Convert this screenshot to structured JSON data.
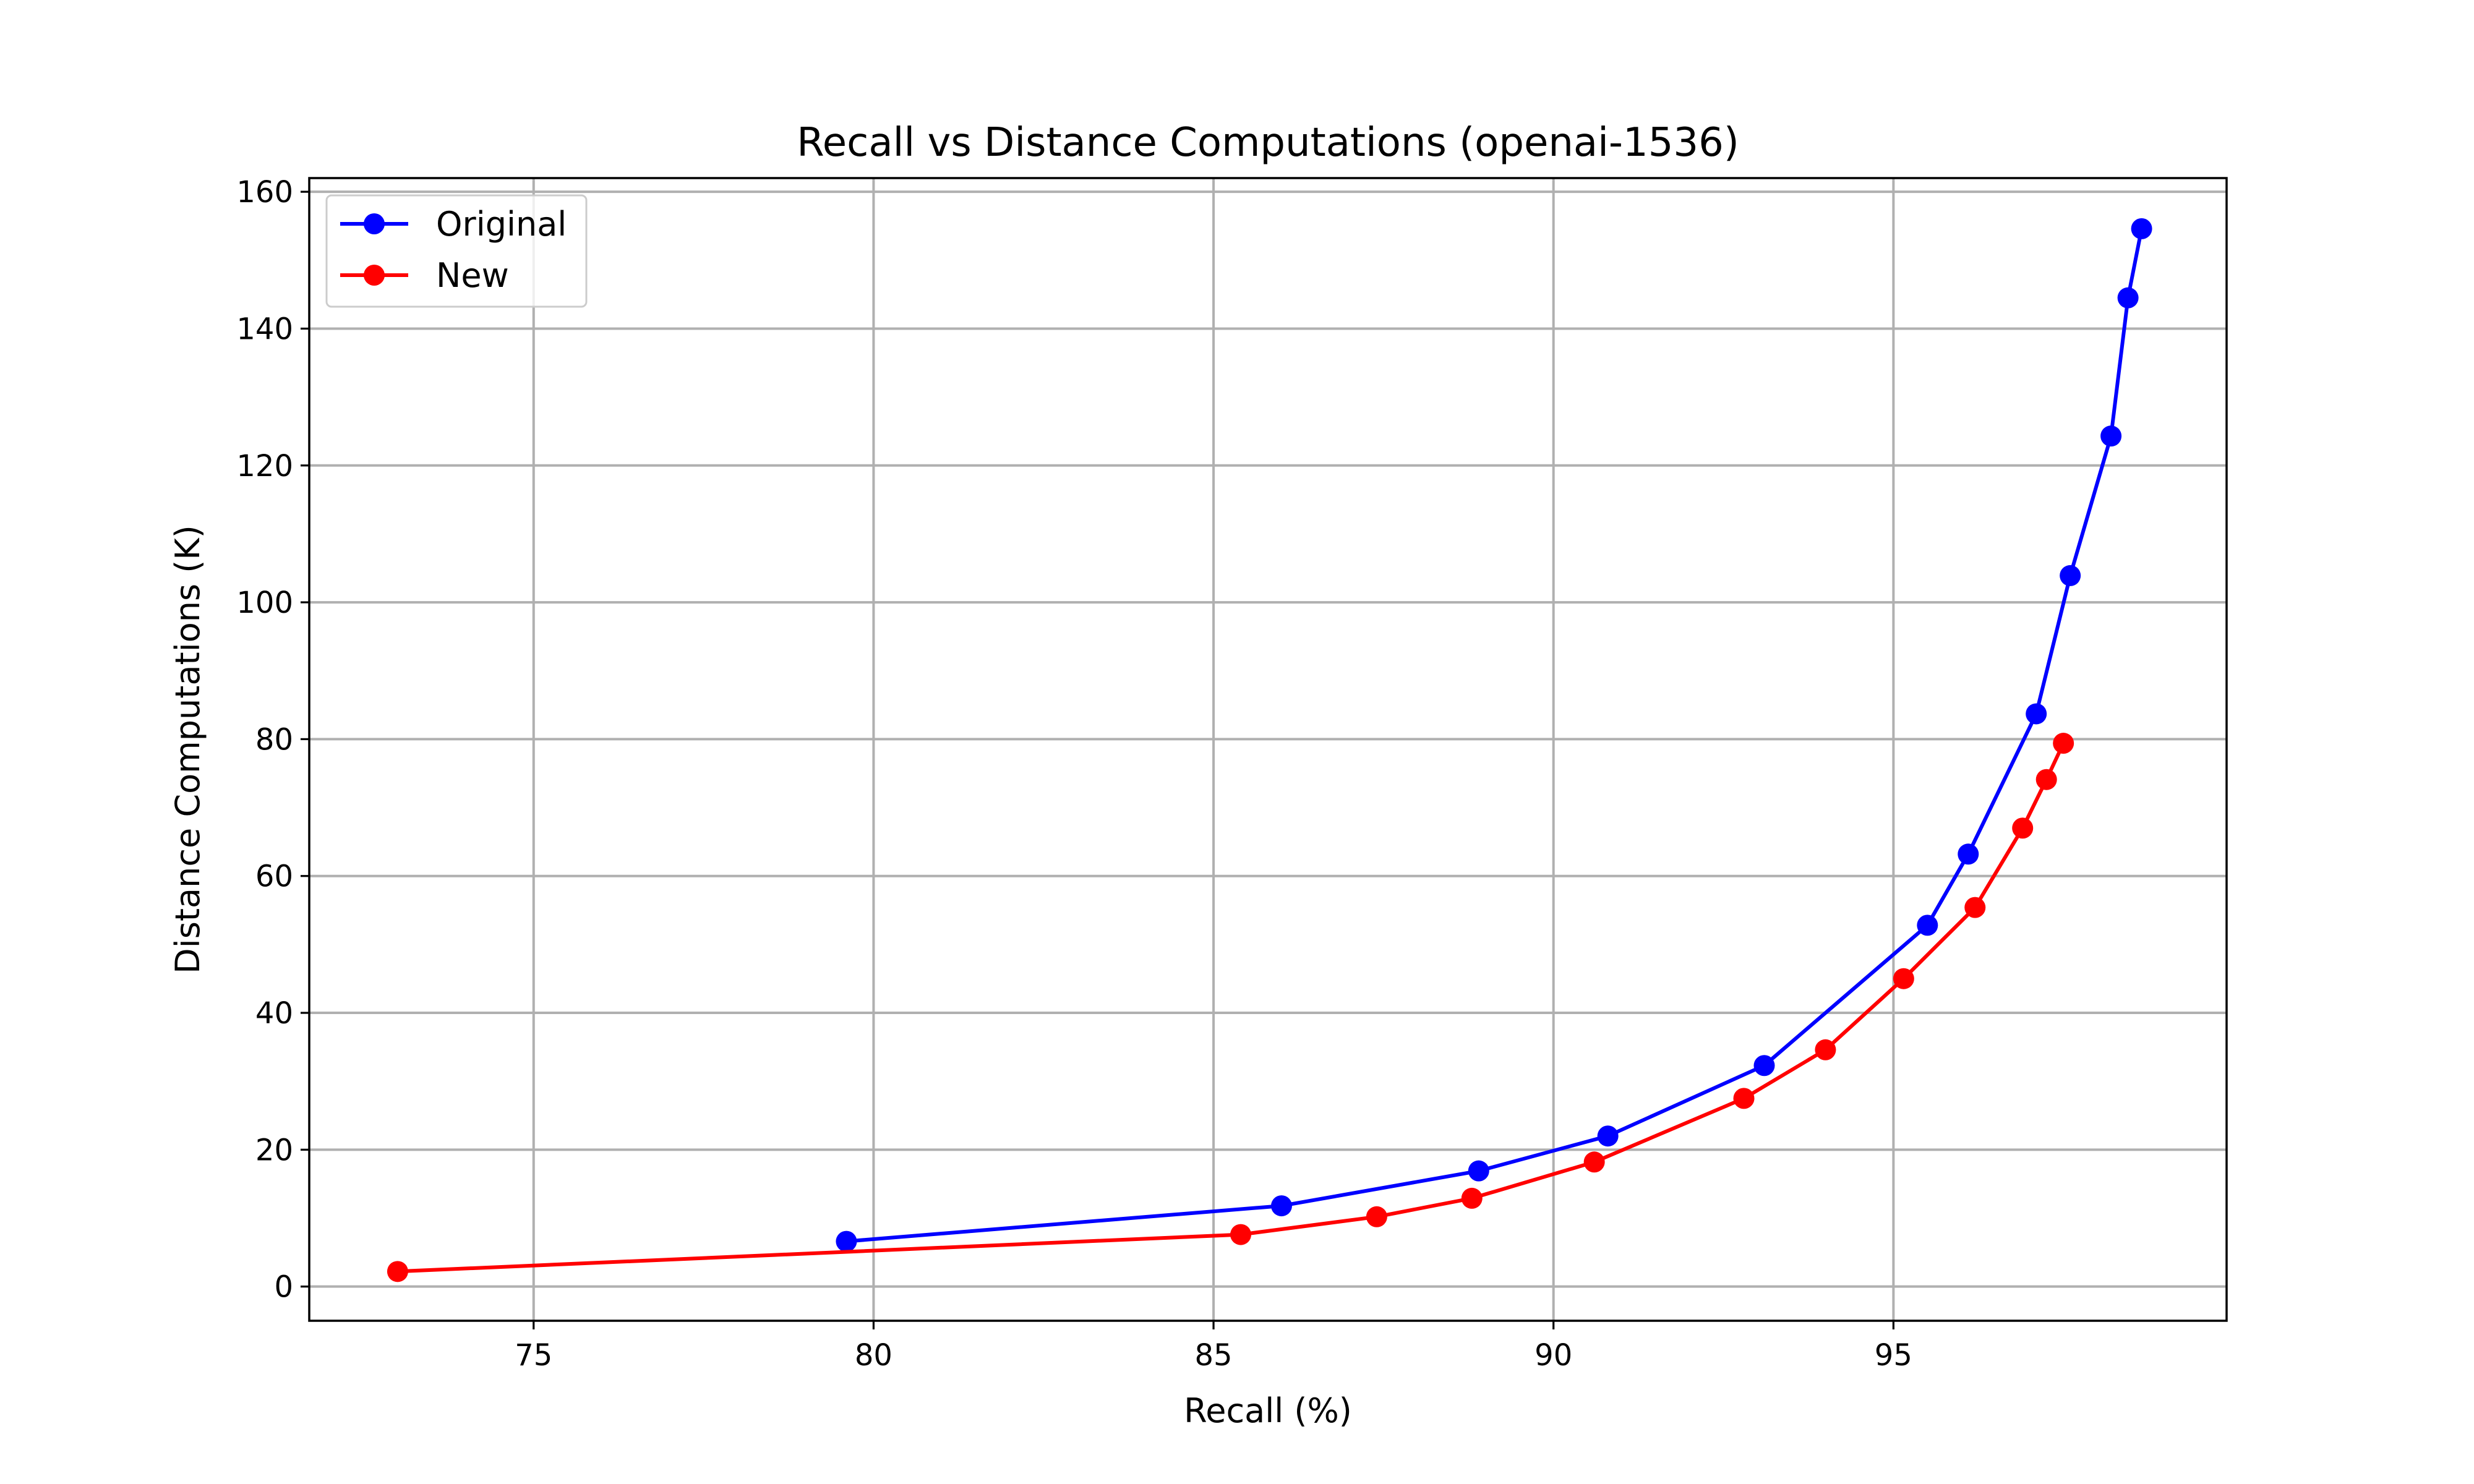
{
  "chart_data": {
    "type": "line",
    "title": "Recall vs Distance Computations (openai-1536)",
    "xlabel": "Recall (%)",
    "ylabel": "Distance Computations (K)",
    "xlim": [
      71.7,
      99.9
    ],
    "ylim": [
      -5,
      162
    ],
    "xticks": [
      75,
      80,
      85,
      90,
      95
    ],
    "yticks": [
      0,
      20,
      40,
      60,
      80,
      100,
      120,
      140,
      160
    ],
    "grid": true,
    "legend_position": "top-left",
    "series": [
      {
        "name": "Original",
        "color": "#0000ff",
        "x": [
          79.6,
          86.0,
          88.9,
          90.8,
          93.1,
          95.5,
          96.1,
          97.1,
          97.6,
          98.2,
          98.45,
          98.65
        ],
        "y": [
          6.6,
          11.8,
          16.9,
          22.0,
          32.3,
          52.8,
          63.2,
          83.7,
          103.9,
          124.3,
          144.5,
          154.6
        ]
      },
      {
        "name": "New",
        "color": "#ff0000",
        "x": [
          73.0,
          85.4,
          87.4,
          88.8,
          90.6,
          92.8,
          94.0,
          95.15,
          96.2,
          96.9,
          97.25,
          97.5
        ],
        "y": [
          2.2,
          7.6,
          10.2,
          12.9,
          18.2,
          27.5,
          34.6,
          45.0,
          55.4,
          67.0,
          74.1,
          79.4
        ]
      }
    ]
  }
}
